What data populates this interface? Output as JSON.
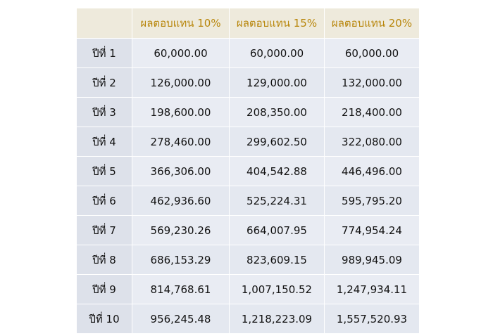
{
  "table": {
    "headers": [
      "",
      "ผลตอบแทน 10%",
      "ผลตอบแทน 15%",
      "ผลตอบแทน 20%"
    ],
    "rows": [
      {
        "year": "ปีที่ 1",
        "r10": "60,000.00",
        "r15": "60,000.00",
        "r20": "60,000.00"
      },
      {
        "year": "ปีที่ 2",
        "r10": "126,000.00",
        "r15": "129,000.00",
        "r20": "132,000.00"
      },
      {
        "year": "ปีที่ 3",
        "r10": "198,600.00",
        "r15": "208,350.00",
        "r20": "218,400.00"
      },
      {
        "year": "ปีที่ 4",
        "r10": "278,460.00",
        "r15": "299,602.50",
        "r20": "322,080.00"
      },
      {
        "year": "ปีที่ 5",
        "r10": "366,306.00",
        "r15": "404,542.88",
        "r20": "446,496.00"
      },
      {
        "year": "ปีที่ 6",
        "r10": "462,936.60",
        "r15": "525,224.31",
        "r20": "595,795.20"
      },
      {
        "year": "ปีที่ 7",
        "r10": "569,230.26",
        "r15": "664,007.95",
        "r20": "774,954.24"
      },
      {
        "year": "ปีที่ 8",
        "r10": "686,153.29",
        "r15": "823,609.15",
        "r20": "989,945.09"
      },
      {
        "year": "ปีที่ 9",
        "r10": "814,768.61",
        "r15": "1,007,150.52",
        "r20": "1,247,934.11"
      },
      {
        "year": "ปีที่ 10",
        "r10": "956,245.48",
        "r15": "1,218,223.09",
        "r20": "1,557,520.93"
      }
    ]
  },
  "colors": {
    "header_bg": "#eeeadc",
    "header_text": "#b8860b",
    "year_cell_bg": "#dde1ea",
    "value_cell_bg": "#e9ecf3"
  }
}
